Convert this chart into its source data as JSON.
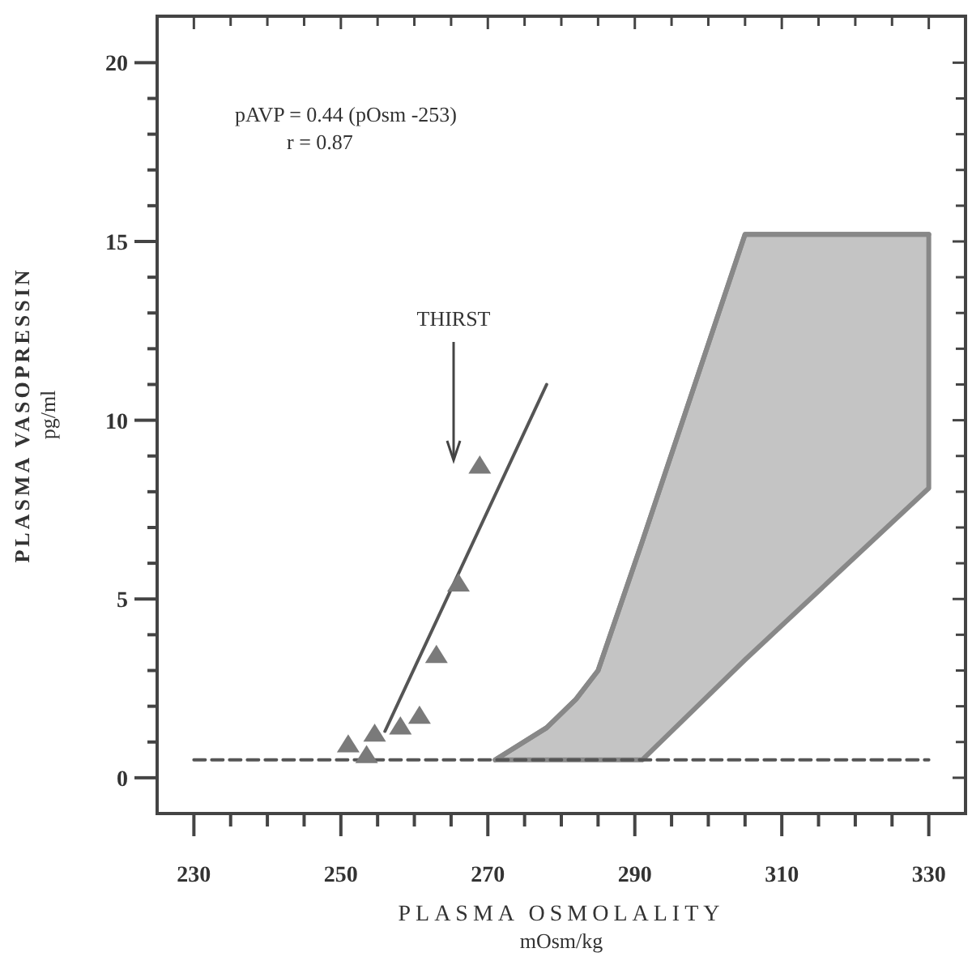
{
  "chart_data": {
    "type": "scatter",
    "xlabel": "PLASMA OSMOLALITY\nmOsm/kg",
    "ylabel": "PLASMA VASOPRESSIN\npg/ml",
    "xlim": [
      225,
      335
    ],
    "ylim": [
      -1,
      21.3
    ],
    "xticks": [
      230,
      {
        "value": 235,
        "label": null
      },
      {
        "value": 240,
        "label": null
      },
      {
        "value": 245,
        "label": null
      },
      250,
      {
        "value": 255,
        "label": null
      },
      {
        "value": 260,
        "label": null
      },
      {
        "value": 265,
        "label": null
      },
      270,
      {
        "value": 275,
        "label": null
      },
      {
        "value": 280,
        "label": null
      },
      {
        "value": 285,
        "label": null
      },
      290,
      {
        "value": 295,
        "label": null
      },
      {
        "value": 300,
        "label": null
      },
      {
        "value": 305,
        "label": null
      },
      310,
      {
        "value": 315,
        "label": null
      },
      {
        "value": 320,
        "label": null
      },
      {
        "value": 325,
        "label": null
      },
      330
    ],
    "yticks": [
      0,
      {
        "value": 1,
        "label": null
      },
      {
        "value": 2,
        "label": null
      },
      {
        "value": 3,
        "label": null
      },
      {
        "value": 4,
        "label": null
      },
      5,
      {
        "value": 6,
        "label": null
      },
      {
        "value": 7,
        "label": null
      },
      {
        "value": 8,
        "label": null
      },
      {
        "value": 9,
        "label": null
      },
      10,
      {
        "value": 11,
        "label": null
      },
      {
        "value": 12,
        "label": null
      },
      {
        "value": 13,
        "label": null
      },
      {
        "value": 14,
        "label": null
      },
      15,
      {
        "value": 16,
        "label": null
      },
      {
        "value": 17,
        "label": null
      },
      {
        "value": 18,
        "label": null
      },
      {
        "value": 19,
        "label": null
      },
      20
    ],
    "series": [
      {
        "type": "line",
        "color": "#888888",
        "x": [
          271,
          278,
          282,
          285,
          291,
          305,
          330
        ],
        "values": [
          0.5,
          1.4,
          2.2,
          3.0,
          6.6,
          15.2,
          15.2
        ],
        "lower": [
          0.5,
          0.5,
          0.5,
          0.5,
          0.5,
          3.3,
          8.1
        ],
        "upper": [
          0.5,
          1.4,
          2.2,
          3.0,
          6.6,
          15.2,
          15.2
        ]
      },
      {
        "type": "line",
        "color": "#555555",
        "line_style": "dashed",
        "x": [
          230,
          330
        ],
        "values": [
          0.5,
          0.5
        ]
      },
      {
        "type": "line",
        "color": "#555555",
        "line_style": "solid",
        "x": [
          256,
          278
        ],
        "values": [
          1.3,
          11.0
        ]
      },
      {
        "color": "#7a7a7a",
        "marker": "triangle",
        "x": [
          251.0,
          253.5,
          254.6,
          258.1,
          260.7,
          263.0,
          266.0,
          268.9
        ],
        "values": [
          0.9,
          0.6,
          1.2,
          1.4,
          1.7,
          3.4,
          5.4,
          8.7
        ]
      }
    ],
    "annotations": [
      "pAVP = 0.44 (pOsm -253)\nr = 0.87",
      "THIRST"
    ]
  }
}
